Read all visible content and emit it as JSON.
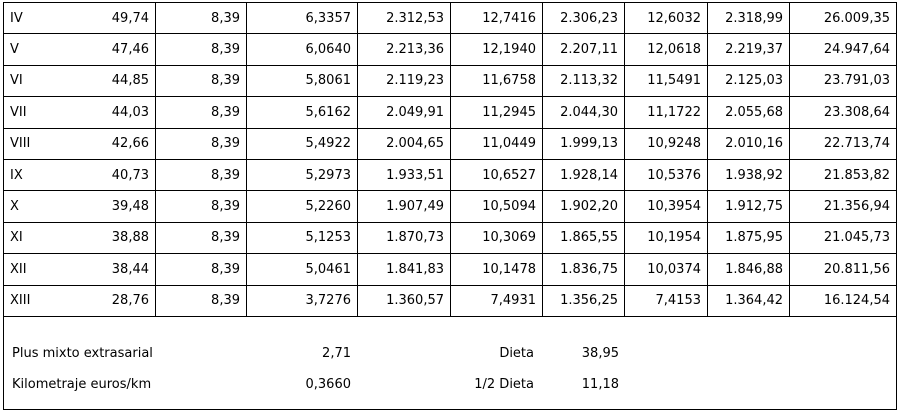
{
  "table": {
    "rows": [
      [
        "IV",
        "49,74",
        "8,39",
        "6,3357",
        "2.312,53",
        "12,7416",
        "2.306,23",
        "12,6032",
        "2.318,99",
        "26.009,35"
      ],
      [
        "V",
        "47,46",
        "8,39",
        "6,0640",
        "2.213,36",
        "12,1940",
        "2.207,11",
        "12,0618",
        "2.219,37",
        "24.947,64"
      ],
      [
        "VI",
        "44,85",
        "8,39",
        "5,8061",
        "2.119,23",
        "11,6758",
        "2.113,32",
        "11,5491",
        "2.125,03",
        "23.791,03"
      ],
      [
        "VII",
        "44,03",
        "8,39",
        "5,6162",
        "2.049,91",
        "11,2945",
        "2.044,30",
        "11,1722",
        "2.055,68",
        "23.308,64"
      ],
      [
        "VIII",
        "42,66",
        "8,39",
        "5,4922",
        "2.004,65",
        "11,0449",
        "1.999,13",
        "10,9248",
        "2.010,16",
        "22.713,74"
      ],
      [
        "IX",
        "40,73",
        "8,39",
        "5,2973",
        "1.933,51",
        "10,6527",
        "1.928,14",
        "10,5376",
        "1.938,92",
        "21.853,82"
      ],
      [
        "X",
        "39,48",
        "8,39",
        "5,2260",
        "1.907,49",
        "10,5094",
        "1.902,20",
        "10,3954",
        "1.912,75",
        "21.356,94"
      ],
      [
        "XI",
        "38,88",
        "8,39",
        "5,1253",
        "1.870,73",
        "10,3069",
        "1.865,55",
        "10,1954",
        "1.875,95",
        "21.045,73"
      ],
      [
        "XII",
        "38,44",
        "8,39",
        "5,0461",
        "1.841,83",
        "10,1478",
        "1.836,75",
        "10,0374",
        "1.846,88",
        "20.811,56"
      ],
      [
        "XIII",
        "28,76",
        "8,39",
        "3,7276",
        "1.360,57",
        "7,4931",
        "1.356,25",
        "7,4153",
        "1.364,42",
        "16.124,54"
      ]
    ]
  },
  "footer": {
    "rows": [
      [
        "Plus mixto extrasarial",
        "2,71",
        "Dieta",
        "38,95"
      ],
      [
        "Kilometraje euros/km",
        "0,3660",
        "1/2 Dieta",
        "11,18"
      ]
    ]
  }
}
